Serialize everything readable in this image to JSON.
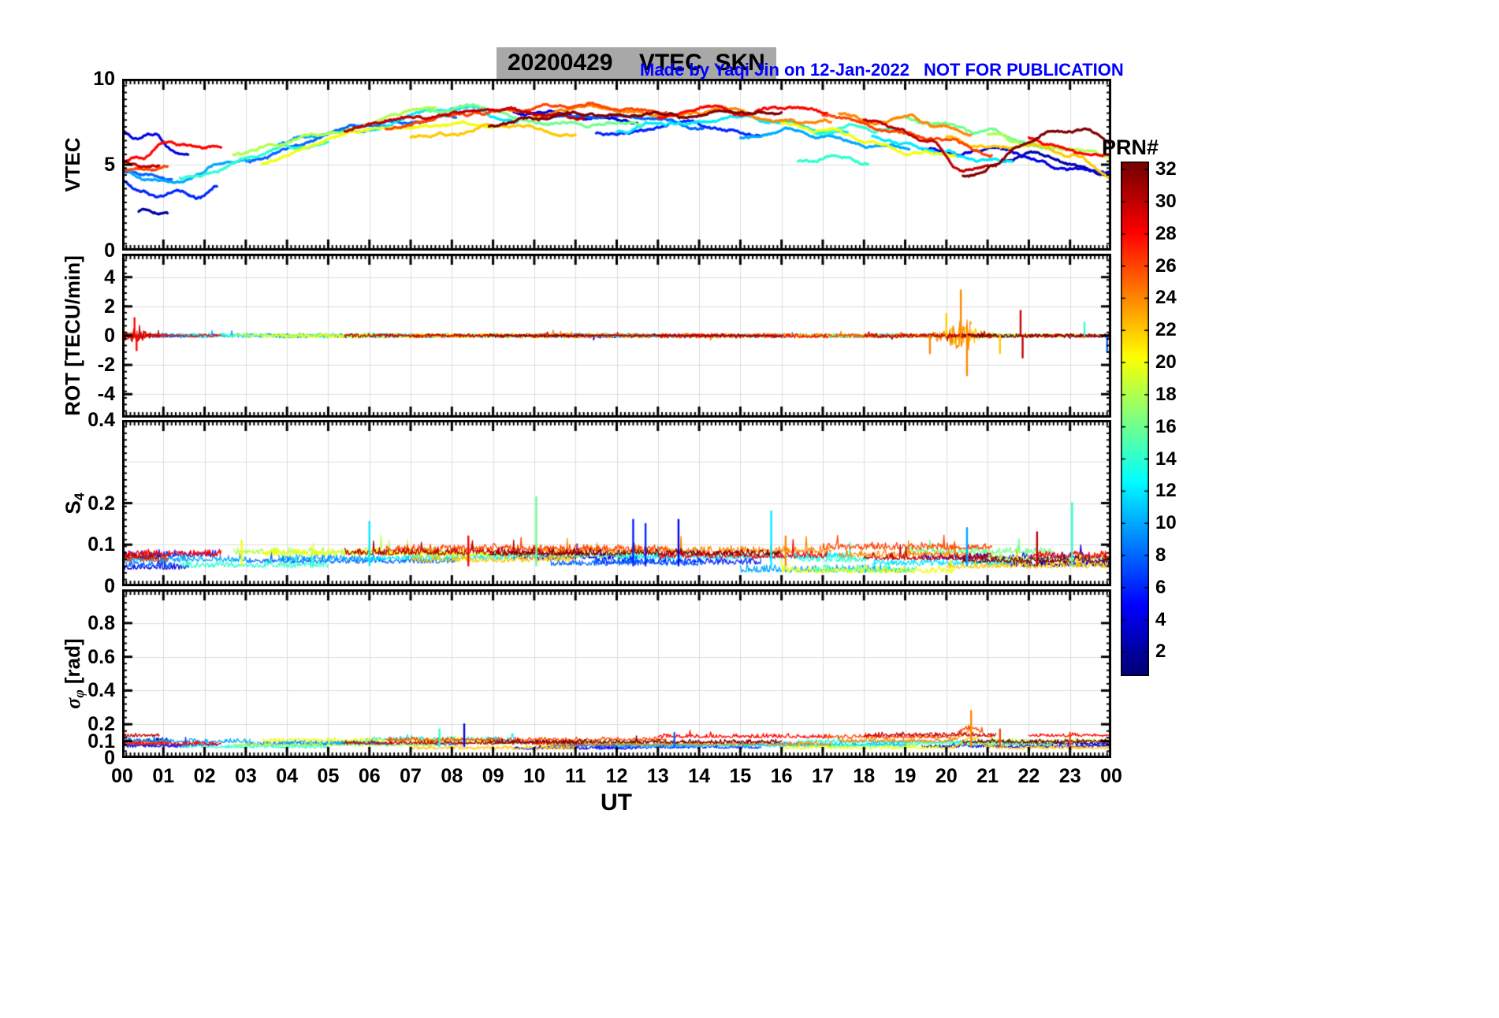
{
  "header": {
    "title": "20200429    VTEC  SKN",
    "title_bg": "#a8a8a8",
    "credit": "Made by Yaqi Jin on 12-Jan-2022",
    "warning": "NOT FOR PUBLICATION",
    "annotation_color": "#0000ff"
  },
  "xaxis": {
    "label": "UT",
    "tick_labels": [
      "00",
      "01",
      "02",
      "03",
      "04",
      "05",
      "06",
      "07",
      "08",
      "09",
      "10",
      "11",
      "12",
      "13",
      "14",
      "15",
      "16",
      "17",
      "18",
      "19",
      "20",
      "21",
      "22",
      "23",
      "00"
    ],
    "range_hours": [
      0,
      24
    ]
  },
  "colorbar": {
    "label": "PRN#",
    "ticks": [
      2,
      4,
      6,
      8,
      10,
      12,
      14,
      16,
      18,
      20,
      22,
      24,
      26,
      28,
      30,
      32
    ],
    "min": 0.5,
    "max": 32.5,
    "colormap": "jet"
  },
  "chart_data": [
    {
      "type": "line",
      "name": "vtec",
      "ylabel": {
        "main": "VTEC",
        "sub": "",
        "rest": ""
      },
      "ylim": [
        0,
        10
      ],
      "yticks": [
        {
          "v": 10,
          "label": "10"
        },
        {
          "v": 5,
          "label": "5"
        },
        {
          "v": 0,
          "label": "0"
        }
      ],
      "grid_y": [
        5
      ],
      "units": "TECU",
      "series": [
        {
          "prn": 4,
          "t0": 0,
          "t1": 1.6,
          "v": [
            6.9,
            6.3,
            6.7,
            5.9,
            5.6
          ]
        },
        {
          "prn": 6,
          "t0": 0,
          "t1": 2.3,
          "v": [
            4.1,
            3.6,
            3.1,
            3.4,
            3.0,
            3.6
          ]
        },
        {
          "prn": 8,
          "t0": 0,
          "t1": 1.2,
          "v": [
            4.9,
            4.5,
            4.2
          ]
        },
        {
          "prn": 28,
          "t0": 0,
          "t1": 2.4,
          "v": [
            5.0,
            5.4,
            6.3,
            6.2,
            6.1,
            6.0
          ]
        },
        {
          "prn": 26,
          "t0": 0,
          "t1": 1.1,
          "v": [
            4.7,
            4.6,
            4.9
          ]
        },
        {
          "prn": 2,
          "t0": 0.4,
          "t1": 1.1,
          "v": [
            2.2,
            2.3
          ]
        },
        {
          "prn": 10,
          "t0": 0,
          "t1": 3.1,
          "v": [
            4.8,
            4.3,
            3.9,
            4.4,
            5.0,
            5.3
          ]
        },
        {
          "prn": 30,
          "t0": 0,
          "t1": 0.9,
          "v": [
            5.2,
            4.9
          ]
        },
        {
          "prn": 14,
          "t0": 1.4,
          "t1": 5.0,
          "v": [
            4.2,
            4.7,
            5.4,
            6.0,
            6.3
          ]
        },
        {
          "prn": 18,
          "t0": 2.7,
          "t1": 7.6,
          "v": [
            5.8,
            6.1,
            6.6,
            7.2,
            7.9,
            8.3
          ]
        },
        {
          "prn": 8,
          "t0": 3.0,
          "t1": 8.1,
          "v": [
            5.1,
            6.0,
            6.8,
            7.3,
            7.6,
            7.8
          ]
        },
        {
          "prn": 20,
          "t0": 3.4,
          "t1": 9.0,
          "v": [
            5.0,
            6.1,
            6.8,
            7.2,
            7.4,
            7.1
          ]
        },
        {
          "prn": 10,
          "t0": 3.8,
          "t1": 6.4,
          "v": [
            6.2,
            6.6,
            7.0,
            7.3
          ]
        },
        {
          "prn": 30,
          "t0": 5.4,
          "t1": 11.2,
          "v": [
            7.0,
            7.6,
            8.0,
            8.2,
            8.0,
            7.8
          ]
        },
        {
          "prn": 12,
          "t0": 5.9,
          "t1": 9.6,
          "v": [
            7.0,
            7.9,
            8.3,
            7.6
          ]
        },
        {
          "prn": 26,
          "t0": 6.4,
          "t1": 13.2,
          "v": [
            7.2,
            7.6,
            8.0,
            8.3,
            8.4,
            8.3,
            8.1
          ]
        },
        {
          "prn": 22,
          "t0": 7.0,
          "t1": 11.0,
          "v": [
            6.6,
            6.9,
            7.3,
            7.0,
            6.8
          ]
        },
        {
          "prn": 16,
          "t0": 7.4,
          "t1": 12.6,
          "v": [
            8.1,
            8.3,
            7.6,
            7.2,
            7.4
          ]
        },
        {
          "prn": 32,
          "t0": 8.9,
          "t1": 16.0,
          "v": [
            7.4,
            7.6,
            7.9,
            8.0,
            7.7,
            8.2,
            8.0
          ]
        },
        {
          "prn": 4,
          "t0": 9.5,
          "t1": 12.5,
          "v": [
            7.9,
            8.1,
            7.7,
            7.4
          ]
        },
        {
          "prn": 24,
          "t0": 10.0,
          "t1": 17.2,
          "v": [
            7.8,
            8.3,
            8.1,
            7.9,
            8.2,
            7.6,
            7.4
          ]
        },
        {
          "prn": 8,
          "t0": 10.4,
          "t1": 14.1,
          "v": [
            7.8,
            8.0,
            7.6,
            7.2
          ]
        },
        {
          "prn": 6,
          "t0": 11.5,
          "t1": 15.5,
          "v": [
            6.7,
            7.0,
            7.4,
            7.1,
            6.8
          ]
        },
        {
          "prn": 12,
          "t0": 12.0,
          "t1": 17.6,
          "v": [
            7.0,
            7.4,
            7.8,
            7.3,
            6.9
          ]
        },
        {
          "prn": 28,
          "t0": 13.0,
          "t1": 17.1,
          "v": [
            7.8,
            8.3,
            8.0,
            8.5,
            7.9
          ]
        },
        {
          "prn": 10,
          "t0": 15.0,
          "t1": 19.1,
          "v": [
            6.6,
            7.0,
            6.6,
            6.2,
            6.0
          ]
        },
        {
          "prn": 20,
          "t0": 16.0,
          "t1": 20.2,
          "v": [
            7.5,
            7.0,
            6.3,
            5.8,
            5.4
          ]
        },
        {
          "prn": 14,
          "t0": 16.4,
          "t1": 18.1,
          "v": [
            5.2,
            5.5,
            5.0
          ]
        },
        {
          "prn": 14,
          "t0": 16.8,
          "t1": 19.3,
          "v": [
            6.9,
            7.3,
            7.0,
            6.6
          ]
        },
        {
          "prn": 26,
          "t0": 17.0,
          "t1": 21.1,
          "v": [
            7.8,
            7.4,
            6.8,
            6.3,
            5.7
          ]
        },
        {
          "prn": 24,
          "t0": 17.4,
          "t1": 20.6,
          "v": [
            7.9,
            7.5,
            7.8,
            7.2,
            6.7
          ]
        },
        {
          "prn": 30,
          "t0": 18.0,
          "t1": 21.2,
          "v": [
            7.6,
            7.2,
            6.4,
            4.5,
            4.9
          ]
        },
        {
          "prn": 12,
          "t0": 18.2,
          "t1": 21.6,
          "v": [
            6.8,
            6.2,
            5.6,
            5.2,
            5.4
          ]
        },
        {
          "prn": 16,
          "t0": 19.0,
          "t1": 22.6,
          "v": [
            7.8,
            7.4,
            6.8,
            6.5,
            6.0
          ]
        },
        {
          "prn": 4,
          "t0": 19.4,
          "t1": 24,
          "v": [
            6.0,
            5.7,
            5.9,
            5.3,
            4.8,
            4.5
          ]
        },
        {
          "prn": 22,
          "t0": 20.0,
          "t1": 24,
          "v": [
            6.5,
            6.0,
            6.3,
            5.6,
            4.3
          ]
        },
        {
          "prn": 32,
          "t0": 20.4,
          "t1": 24,
          "v": [
            4.3,
            5.0,
            6.2,
            6.8,
            7.0,
            6.4
          ]
        },
        {
          "prn": 18,
          "t0": 21.0,
          "t1": 24,
          "v": [
            6.8,
            6.3,
            5.8,
            5.4
          ]
        },
        {
          "prn": 2,
          "t0": 21.4,
          "t1": 24,
          "v": [
            5.2,
            5.6,
            5.0,
            4.6
          ]
        },
        {
          "prn": 28,
          "t0": 22.0,
          "t1": 24,
          "v": [
            6.6,
            6.2,
            5.8,
            5.3
          ]
        }
      ]
    },
    {
      "type": "line",
      "name": "rot",
      "ylabel": {
        "main": "ROT [TECU/min]",
        "sub": "",
        "rest": ""
      },
      "ylim": [
        -5.6,
        5.6
      ],
      "yticks": [
        {
          "v": 4,
          "label": "4"
        },
        {
          "v": 2,
          "label": "2"
        },
        {
          "v": 0,
          "label": "0"
        },
        {
          "v": -2,
          "label": "-2"
        },
        {
          "v": -4,
          "label": "-4"
        }
      ],
      "grid_y": [
        4,
        2,
        0,
        -2,
        -4
      ],
      "noise_amp": 0.12,
      "bursts": [
        {
          "c": 20.4,
          "s": 0.55,
          "f": 7,
          "minPrn": 22,
          "maxPrn": 32
        },
        {
          "c": 21.85,
          "s": 0.15,
          "f": 6,
          "minPrn": 30,
          "maxPrn": 32
        },
        {
          "c": 23.35,
          "s": 0.12,
          "f": 3,
          "minPrn": 12,
          "maxPrn": 16
        },
        {
          "c": 0.3,
          "s": 0.3,
          "f": 2.5,
          "minPrn": 26,
          "maxPrn": 32
        }
      ],
      "spikes": [
        {
          "t": 20.35,
          "v": 3.1,
          "prn": 24
        },
        {
          "t": 20.5,
          "v": -2.7,
          "prn": 24
        },
        {
          "t": 20.0,
          "v": 1.5,
          "prn": 22
        },
        {
          "t": 19.6,
          "v": -1.2,
          "prn": 24
        },
        {
          "t": 21.8,
          "v": 1.7,
          "prn": 30
        },
        {
          "t": 21.85,
          "v": -1.5,
          "prn": 30
        },
        {
          "t": 21.3,
          "v": -1.2,
          "prn": 22
        },
        {
          "t": 23.35,
          "v": 0.9,
          "prn": 14
        },
        {
          "t": 23.9,
          "v": -1.1,
          "prn": 8
        },
        {
          "t": 0.3,
          "v": 1.2,
          "prn": 28
        },
        {
          "t": 0.35,
          "v": -1.0,
          "prn": 28
        }
      ]
    },
    {
      "type": "line",
      "name": "s4",
      "ylabel": {
        "main": "S",
        "sub": "4",
        "rest": ""
      },
      "ylim": [
        0,
        0.4
      ],
      "yticks": [
        {
          "v": 0.4,
          "label": "0.4"
        },
        {
          "v": 0.2,
          "label": "0.2"
        },
        {
          "v": 0.1,
          "label": "0.1"
        },
        {
          "v": 0,
          "label": "0"
        }
      ],
      "grid_y": [
        0.1,
        0.2,
        0.3
      ],
      "baseline": {
        "lo": 0.03,
        "hi": 0.08
      },
      "spikes": [
        {
          "t": 2.9,
          "v": 0.11,
          "prn": 20
        },
        {
          "t": 6.0,
          "v": 0.155,
          "prn": 12
        },
        {
          "t": 8.4,
          "v": 0.12,
          "prn": 28
        },
        {
          "t": 10.05,
          "v": 0.215,
          "prn": 16
        },
        {
          "t": 12.4,
          "v": 0.16,
          "prn": 6
        },
        {
          "t": 12.7,
          "v": 0.15,
          "prn": 6
        },
        {
          "t": 13.5,
          "v": 0.16,
          "prn": 4
        },
        {
          "t": 15.75,
          "v": 0.18,
          "prn": 12
        },
        {
          "t": 16.1,
          "v": 0.12,
          "prn": 24
        },
        {
          "t": 20.5,
          "v": 0.14,
          "prn": 10
        },
        {
          "t": 22.2,
          "v": 0.13,
          "prn": 30
        },
        {
          "t": 23.05,
          "v": 0.2,
          "prn": 14
        }
      ]
    },
    {
      "type": "line",
      "name": "sigma_phi",
      "ylabel": {
        "main": "σ",
        "sub": "φ",
        "rest": " [rad]"
      },
      "ylim": [
        0,
        1.0
      ],
      "yticks": [
        {
          "v": 0.8,
          "label": "0.8"
        },
        {
          "v": 0.6,
          "label": "0.6"
        },
        {
          "v": 0.4,
          "label": "0.4"
        },
        {
          "v": 0.2,
          "label": "0.2"
        },
        {
          "v": 0.1,
          "label": "0.1"
        },
        {
          "v": 0,
          "label": "0"
        }
      ],
      "grid_y": [
        0.1,
        0.2,
        0.4,
        0.6,
        0.8
      ],
      "baseline": {
        "lo": 0.05,
        "hi": 0.11
      },
      "bursts": [
        {
          "c": 20.6,
          "s": 0.3,
          "f": 1.2,
          "minPrn": 22,
          "maxPrn": 28
        }
      ],
      "spikes": [
        {
          "t": 7.7,
          "v": 0.17,
          "prn": 14
        },
        {
          "t": 8.3,
          "v": 0.2,
          "prn": 4
        },
        {
          "t": 13.4,
          "v": 0.15,
          "prn": 8
        },
        {
          "t": 20.6,
          "v": 0.28,
          "prn": 24
        },
        {
          "t": 21.3,
          "v": 0.17,
          "prn": 26
        },
        {
          "t": 23.0,
          "v": 0.15,
          "prn": 26
        }
      ]
    }
  ]
}
